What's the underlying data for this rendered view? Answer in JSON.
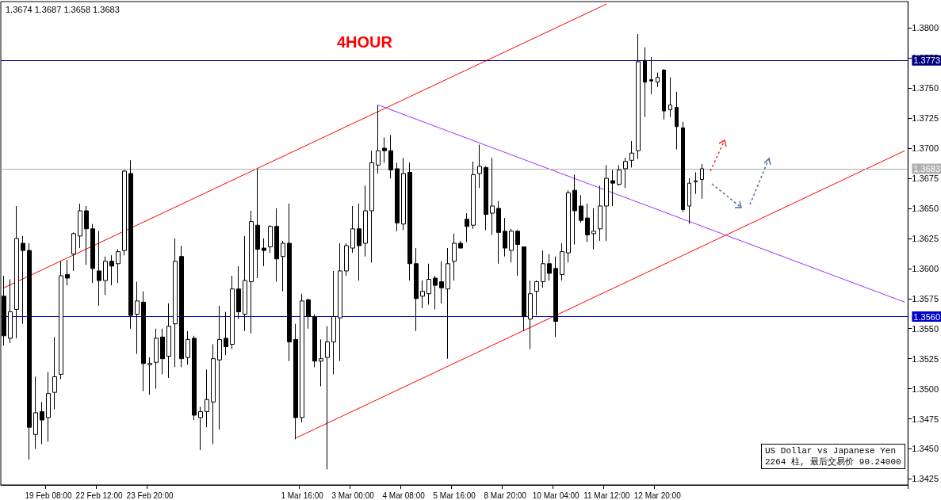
{
  "chart_data": {
    "type": "candlestick",
    "title": "4HOUR",
    "subtitle": "1.3674 1.3687 1.3658 1.3683",
    "annotations": [
      "US Dollar vs Japanese Yen",
      "2264 柱, 最后交易价 90.24000"
    ],
    "color": "#000000",
    "categories": [
      null,
      null,
      null,
      null,
      null,
      null,
      null,
      "19 Feb 08:00",
      null,
      null,
      null,
      null,
      null,
      null,
      null,
      "22 Feb 12:00",
      null,
      null,
      null,
      null,
      null,
      null,
      null,
      "23 Feb 20:00",
      null,
      null,
      null,
      null,
      null,
      null,
      null,
      null,
      null,
      null,
      null,
      null,
      null,
      null,
      null,
      null,
      null,
      null,
      null,
      null,
      null,
      null,
      null,
      "1 Mar 16:00",
      null,
      null,
      null,
      null,
      null,
      null,
      null,
      "3 Mar 00:00",
      null,
      null,
      null,
      null,
      null,
      null,
      null,
      "4 Mar 08:00",
      null,
      null,
      null,
      null,
      null,
      null,
      null,
      "5 Mar 16:00",
      null,
      null,
      null,
      null,
      null,
      null,
      null,
      "8 Mar 20:00",
      null,
      null,
      null,
      null,
      null,
      null,
      null,
      "10 Mar 04:00",
      null,
      null,
      null,
      null,
      null,
      null,
      null,
      "11 Mar 12:00",
      null,
      null,
      null,
      null,
      null,
      null,
      null,
      "12 Mar 20:00",
      null,
      null,
      null,
      null,
      null,
      null,
      null,
      null,
      null,
      null,
      null,
      null,
      null,
      null,
      null,
      null,
      null,
      null,
      null,
      null,
      null,
      null,
      null,
      null,
      null,
      null,
      null,
      null,
      null,
      null,
      null,
      null,
      null,
      null,
      null,
      null,
      null,
      null,
      null
    ],
    "ohlc": [
      [
        1.3577,
        1.3594,
        1.3536,
        1.3544
      ],
      [
        1.3542,
        1.3591,
        1.3538,
        1.3564
      ],
      [
        1.3566,
        1.3652,
        1.3542,
        1.3625
      ],
      [
        1.3621,
        1.3627,
        1.3554,
        1.3615
      ],
      [
        1.3615,
        1.3621,
        1.3441,
        1.3468
      ],
      [
        1.3462,
        1.351,
        1.345,
        1.348
      ],
      [
        1.3481,
        1.3489,
        1.3454,
        1.3474
      ],
      [
        1.3476,
        1.3514,
        1.3456,
        1.3496
      ],
      [
        1.3497,
        1.3543,
        1.3483,
        1.351
      ],
      [
        1.3512,
        1.3606,
        1.3508,
        1.3594
      ],
      [
        1.3595,
        1.3607,
        1.3586,
        1.3592
      ],
      [
        1.3612,
        1.363,
        1.3598,
        1.3629
      ],
      [
        1.3627,
        1.3654,
        1.3617,
        1.3648
      ],
      [
        1.3648,
        1.3652,
        1.3603,
        1.3633
      ],
      [
        1.3633,
        1.3637,
        1.3588,
        1.36
      ],
      [
        1.3598,
        1.3631,
        1.3569,
        1.359
      ],
      [
        1.359,
        1.361,
        1.3578,
        1.3606
      ],
      [
        1.3606,
        1.3611,
        1.3586,
        1.3602
      ],
      [
        1.3604,
        1.3616,
        1.3588,
        1.3614
      ],
      [
        1.3615,
        1.3682,
        1.3611,
        1.3681
      ],
      [
        1.3679,
        1.369,
        1.355,
        1.3561
      ],
      [
        1.3562,
        1.3589,
        1.3529,
        1.3573
      ],
      [
        1.3572,
        1.3581,
        1.3498,
        1.3521
      ],
      [
        1.352,
        1.3526,
        1.3495,
        1.3521
      ],
      [
        1.3522,
        1.355,
        1.35,
        1.3542
      ],
      [
        1.3543,
        1.355,
        1.3512,
        1.3525
      ],
      [
        1.3527,
        1.3571,
        1.3509,
        1.3552
      ],
      [
        1.3554,
        1.3625,
        1.3518,
        1.3606
      ],
      [
        1.361,
        1.3619,
        1.3518,
        1.3525
      ],
      [
        1.3526,
        1.3548,
        1.352,
        1.3541
      ],
      [
        1.3542,
        1.3544,
        1.3474,
        1.3478
      ],
      [
        1.3476,
        1.3485,
        1.3449,
        1.3481
      ],
      [
        1.3481,
        1.3516,
        1.3468,
        1.3491
      ],
      [
        1.3489,
        1.3537,
        1.3454,
        1.3525
      ],
      [
        1.3524,
        1.3569,
        1.3466,
        1.3541
      ],
      [
        1.3542,
        1.3564,
        1.3528,
        1.3535
      ],
      [
        1.3537,
        1.3594,
        1.3533,
        1.3583
      ],
      [
        1.3583,
        1.3602,
        1.3558,
        1.3564
      ],
      [
        1.3562,
        1.3627,
        1.3548,
        1.359
      ],
      [
        1.3589,
        1.3648,
        1.3546,
        1.3639
      ],
      [
        1.3636,
        1.3683,
        1.3592,
        1.3616
      ],
      [
        1.3617,
        1.3625,
        1.3602,
        1.3615
      ],
      [
        1.3618,
        1.3636,
        1.3613,
        1.3635
      ],
      [
        1.3635,
        1.365,
        1.3589,
        1.3608
      ],
      [
        1.361,
        1.3623,
        1.3581,
        1.3621
      ],
      [
        1.3621,
        1.3654,
        1.3523,
        1.3539
      ],
      [
        1.3541,
        1.3554,
        1.3458,
        1.3476
      ],
      [
        1.3476,
        1.3579,
        1.3472,
        1.3573
      ],
      [
        1.3574,
        1.3575,
        1.355,
        1.356
      ],
      [
        1.356,
        1.3562,
        1.3518,
        1.3523
      ],
      [
        1.3523,
        1.3541,
        1.3502,
        1.3525
      ],
      [
        1.3526,
        1.3552,
        1.3433,
        1.3539
      ],
      [
        1.3539,
        1.3598,
        1.3512,
        1.356
      ],
      [
        1.3559,
        1.3621,
        1.3523,
        1.3598
      ],
      [
        1.3598,
        1.3621,
        1.3594,
        1.3619
      ],
      [
        1.3617,
        1.3652,
        1.3613,
        1.3633
      ],
      [
        1.3633,
        1.3654,
        1.359,
        1.3619
      ],
      [
        1.3621,
        1.3669,
        1.361,
        1.3648
      ],
      [
        1.3648,
        1.3698,
        1.3605,
        1.3688
      ],
      [
        1.3686,
        1.3736,
        1.3679,
        1.3698
      ],
      [
        1.37,
        1.3709,
        1.3688,
        1.3698
      ],
      [
        1.3698,
        1.3711,
        1.3675,
        1.3682
      ],
      [
        1.3683,
        1.3688,
        1.3631,
        1.3638
      ],
      [
        1.3637,
        1.3692,
        1.3632,
        1.3679
      ],
      [
        1.368,
        1.3688,
        1.359,
        1.3604
      ],
      [
        1.3604,
        1.3617,
        1.3548,
        1.3575
      ],
      [
        1.3577,
        1.359,
        1.3567,
        1.3581
      ],
      [
        1.3579,
        1.3604,
        1.357,
        1.3591
      ],
      [
        1.3592,
        1.3594,
        1.3566,
        1.3586
      ],
      [
        1.3589,
        1.3606,
        1.3571,
        1.3584
      ],
      [
        1.3583,
        1.3617,
        1.3525,
        1.3604
      ],
      [
        1.3606,
        1.3629,
        1.359,
        1.3621
      ],
      [
        1.3621,
        1.3623,
        1.3617,
        1.3617
      ],
      [
        1.3641,
        1.3646,
        1.3622,
        1.3635
      ],
      [
        1.3636,
        1.3689,
        1.3633,
        1.3678
      ],
      [
        1.3679,
        1.3703,
        1.3667,
        1.3685
      ],
      [
        1.3684,
        1.3685,
        1.3632,
        1.3645
      ],
      [
        1.3646,
        1.3692,
        1.3628,
        1.3652
      ],
      [
        1.365,
        1.3656,
        1.3604,
        1.363
      ],
      [
        1.3631,
        1.3642,
        1.361,
        1.3617
      ],
      [
        1.3615,
        1.3633,
        1.3605,
        1.3631
      ],
      [
        1.3631,
        1.3632,
        1.3594,
        1.362
      ],
      [
        1.3618,
        1.3618,
        1.3548,
        1.356
      ],
      [
        1.3558,
        1.359,
        1.3533,
        1.3579
      ],
      [
        1.3581,
        1.359,
        1.3561,
        1.3589
      ],
      [
        1.3589,
        1.3615,
        1.3584,
        1.3604
      ],
      [
        1.3604,
        1.3612,
        1.359,
        1.3596
      ],
      [
        1.36,
        1.361,
        1.3543,
        1.3556
      ],
      [
        1.3595,
        1.3621,
        1.359,
        1.3614
      ],
      [
        1.3613,
        1.3665,
        1.3605,
        1.3663
      ],
      [
        1.3665,
        1.3678,
        1.362,
        1.3648
      ],
      [
        1.3652,
        1.3661,
        1.3638,
        1.364
      ],
      [
        1.3642,
        1.3654,
        1.3622,
        1.3628
      ],
      [
        1.3629,
        1.365,
        1.3616,
        1.3631
      ],
      [
        1.3633,
        1.3669,
        1.3623,
        1.3652
      ],
      [
        1.3652,
        1.3686,
        1.3623,
        1.3675
      ],
      [
        1.3673,
        1.3682,
        1.3652,
        1.3671
      ],
      [
        1.367,
        1.3686,
        1.3669,
        1.3682
      ],
      [
        1.3683,
        1.3692,
        1.3667,
        1.3689
      ],
      [
        1.369,
        1.3706,
        1.3684,
        1.3696
      ],
      [
        1.3698,
        1.3795,
        1.3691,
        1.3772
      ],
      [
        1.3773,
        1.3784,
        1.3726,
        1.3755
      ],
      [
        1.3757,
        1.3776,
        1.3745,
        1.3756
      ],
      [
        1.3755,
        1.3763,
        1.3751,
        1.3759
      ],
      [
        1.3765,
        1.3766,
        1.3724,
        1.3731
      ],
      [
        1.3732,
        1.3759,
        1.3726,
        1.3736
      ],
      [
        1.3734,
        1.3747,
        1.3699,
        1.3718
      ],
      [
        1.3717,
        1.3722,
        1.3647,
        1.3649
      ],
      [
        1.3652,
        1.3675,
        1.3637,
        1.3671
      ],
      [
        1.3672,
        1.368,
        1.3662,
        1.3673
      ],
      [
        1.3674,
        1.3687,
        1.3658,
        1.3683
      ],
      null,
      null,
      null,
      null,
      null,
      null,
      null,
      null,
      null,
      null,
      null,
      null,
      null,
      null,
      null,
      null,
      null,
      null,
      null,
      null,
      null,
      null,
      null,
      null,
      null,
      null,
      null,
      null,
      null,
      null,
      null,
      null
    ],
    "series": [
      {
        "type": "line",
        "color": "#ff0000",
        "values": [
          1.3584,
          null,
          null,
          null,
          null,
          null,
          null,
          null,
          null,
          null,
          null,
          null,
          null,
          null,
          null,
          null,
          null,
          null,
          null,
          null,
          null,
          null,
          null,
          null,
          null,
          null,
          null,
          null,
          null,
          null,
          null,
          null,
          null,
          null,
          null,
          null,
          null,
          null,
          null,
          null,
          null,
          null,
          null,
          null,
          null,
          null,
          null,
          null,
          null,
          null,
          null,
          null,
          null,
          null,
          null,
          null,
          null,
          null,
          null,
          null,
          null,
          null,
          null,
          null,
          null,
          null,
          null,
          null,
          null,
          null,
          null,
          null,
          null,
          null,
          null,
          null,
          null,
          null,
          null,
          null,
          null,
          null,
          null,
          null,
          null,
          null,
          null,
          null,
          null,
          null,
          null,
          null,
          null,
          null,
          null,
          1.382,
          null,
          null,
          null,
          null,
          null,
          null,
          null,
          null,
          null,
          null,
          null,
          null,
          null,
          null,
          null,
          null,
          null,
          null,
          null,
          null,
          null,
          null,
          null,
          null,
          null,
          null,
          null,
          null,
          null,
          null,
          null,
          null,
          null,
          null,
          null,
          null,
          null,
          null,
          null,
          null,
          null,
          null,
          null,
          null,
          null,
          null,
          null
        ]
      },
      {
        "type": "line",
        "color": "#ff0000",
        "values": [
          null,
          null,
          null,
          null,
          null,
          null,
          null,
          null,
          null,
          null,
          null,
          null,
          null,
          null,
          null,
          null,
          null,
          null,
          null,
          null,
          null,
          null,
          null,
          null,
          null,
          null,
          null,
          null,
          null,
          null,
          null,
          null,
          null,
          null,
          null,
          null,
          null,
          null,
          null,
          null,
          null,
          null,
          null,
          null,
          null,
          null,
          1.3459,
          null,
          null,
          null,
          null,
          null,
          null,
          null,
          null,
          null,
          null,
          null,
          null,
          null,
          null,
          null,
          null,
          null,
          null,
          null,
          null,
          null,
          null,
          null,
          null,
          null,
          null,
          null,
          null,
          null,
          null,
          null,
          null,
          null,
          null,
          null,
          null,
          null,
          null,
          null,
          null,
          null,
          null,
          null,
          null,
          null,
          null,
          null,
          null,
          null,
          null,
          null,
          null,
          null,
          null,
          null,
          null,
          null,
          null,
          null,
          null,
          null,
          null,
          null,
          null,
          null,
          null,
          null,
          null,
          null,
          null,
          null,
          null,
          null,
          null,
          null,
          null,
          null,
          null,
          null,
          null,
          null,
          null,
          null,
          null,
          null,
          null,
          null,
          null,
          null,
          null,
          null,
          null,
          null,
          null,
          null,
          1.3698
        ]
      },
      {
        "type": "line",
        "color": "#9b30ff",
        "values": [
          null,
          null,
          null,
          null,
          null,
          null,
          null,
          null,
          null,
          null,
          null,
          null,
          null,
          null,
          null,
          null,
          null,
          null,
          null,
          null,
          null,
          null,
          null,
          null,
          null,
          null,
          null,
          null,
          null,
          null,
          null,
          null,
          null,
          null,
          null,
          null,
          null,
          null,
          null,
          null,
          null,
          null,
          null,
          null,
          null,
          null,
          null,
          null,
          null,
          null,
          null,
          null,
          null,
          null,
          null,
          null,
          null,
          null,
          null,
          1.3736,
          null,
          null,
          null,
          null,
          null,
          null,
          null,
          null,
          null,
          null,
          null,
          null,
          null,
          null,
          null,
          null,
          null,
          null,
          null,
          null,
          null,
          null,
          null,
          null,
          null,
          null,
          null,
          null,
          null,
          null,
          null,
          null,
          null,
          null,
          null,
          null,
          null,
          null,
          null,
          null,
          null,
          null,
          null,
          null,
          null,
          null,
          null,
          null,
          null,
          null,
          null,
          null,
          null,
          null,
          null,
          null,
          null,
          null,
          null,
          null,
          null,
          null,
          null,
          null,
          null,
          null,
          null,
          null,
          null,
          null,
          null,
          null,
          null,
          null,
          null,
          null,
          null,
          null,
          null,
          null,
          null,
          null,
          1.3572
        ]
      }
    ],
    "ref_lines": [
      {
        "axis": "y",
        "value": 1.3773,
        "label": "1.3773",
        "color": "#000080"
      },
      {
        "axis": "y",
        "value": 1.3683,
        "label": "1.3683",
        "color": "#b0b0b0"
      },
      {
        "axis": "y",
        "value": 1.356,
        "label": "1.3560",
        "color": "#0000cc"
      }
    ],
    "ylim": [
      1.342,
      1.3822
    ],
    "yticks": [
      1.3425,
      {
        "value": 1.345,
        "label": "1.3450"
      },
      1.3475,
      {
        "value": 1.35,
        "label": "1.3500"
      },
      1.3525,
      {
        "value": 1.355,
        "label": "1.3550"
      },
      1.3575,
      {
        "value": 1.36,
        "label": "1.3600"
      },
      1.3625,
      {
        "value": 1.365,
        "label": "1.3650"
      },
      1.3675,
      {
        "value": 1.37,
        "label": "1.3700"
      },
      1.3725,
      {
        "value": 1.375,
        "label": "1.3750"
      },
      1.3775,
      {
        "value": 1.38,
        "label": "1.3800"
      }
    ],
    "grid": false
  }
}
